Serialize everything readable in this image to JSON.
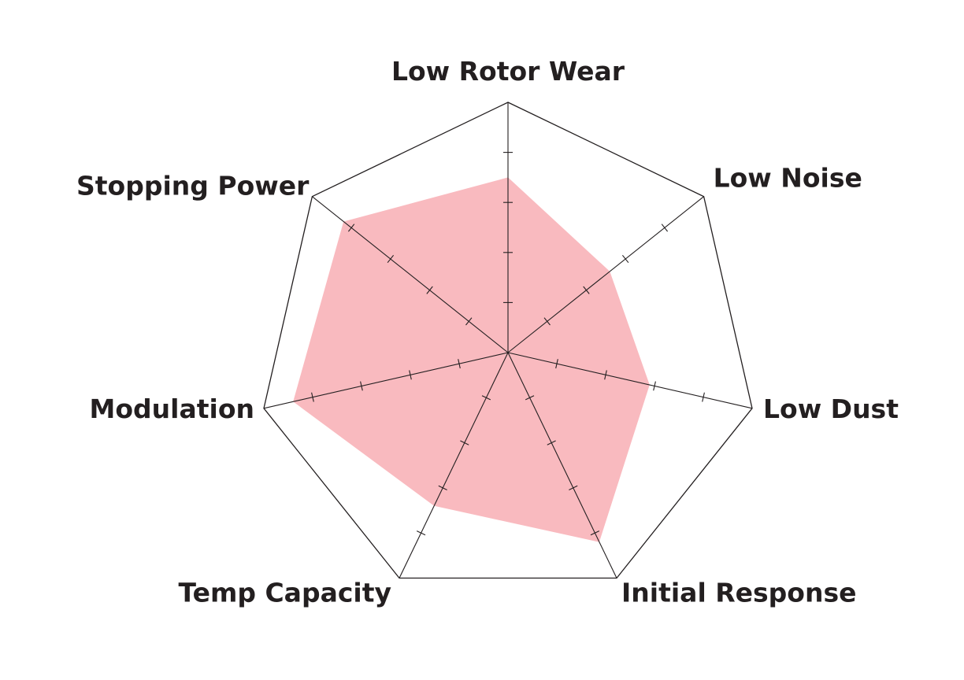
{
  "chart_data": {
    "type": "radar",
    "axes": [
      "Low Rotor Wear",
      "Low Noise",
      "Low Dust",
      "Initial Response",
      "Temp Capacity",
      "Modulation",
      "Stopping Power"
    ],
    "series": [
      {
        "values": [
          3.5,
          2.6,
          2.9,
          4.2,
          3.4,
          4.4,
          4.2
        ]
      }
    ],
    "max": 5,
    "ticks": [
      1,
      2,
      3,
      4
    ],
    "colors": {
      "fill": "#f9babf",
      "line": "#231f20"
    }
  }
}
